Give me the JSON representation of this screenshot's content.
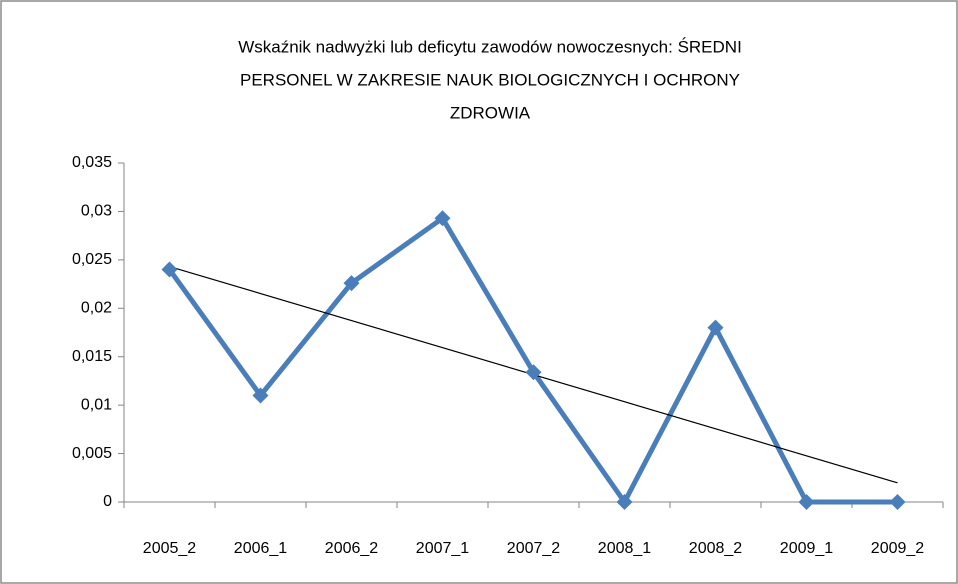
{
  "chart_data": {
    "type": "line",
    "title": [
      "Wskaźnik nadwyżki lub deficytu zawodów nowoczesnych: ŚREDNI",
      "PERSONEL W ZAKRESIE NAUK BIOLOGICZNYCH I OCHRONY",
      "ZDROWIA"
    ],
    "categories": [
      "2005_2",
      "2006_1",
      "2006_2",
      "2007_1",
      "2007_2",
      "2008_1",
      "2008_2",
      "2009_1",
      "2009_2"
    ],
    "values": [
      0.024,
      0.011,
      0.0226,
      0.0293,
      0.0134,
      0,
      0.018,
      0,
      0
    ],
    "color": "#4a7ebb",
    "trendline": "linear",
    "trendline_color": "#000000",
    "ylim": [
      0,
      0.035
    ],
    "yticks": [
      0,
      {
        "value": 0.005,
        "label": "0,005"
      },
      {
        "value": 0.01,
        "label": "0,01"
      },
      {
        "value": 0.015,
        "label": "0,015"
      },
      {
        "value": 0.02,
        "label": "0,02"
      },
      {
        "value": 0.025,
        "label": "0,025"
      },
      {
        "value": 0.03,
        "label": "0,03"
      },
      {
        "value": 0.035,
        "label": "0,035"
      }
    ],
    "grid": false
  }
}
